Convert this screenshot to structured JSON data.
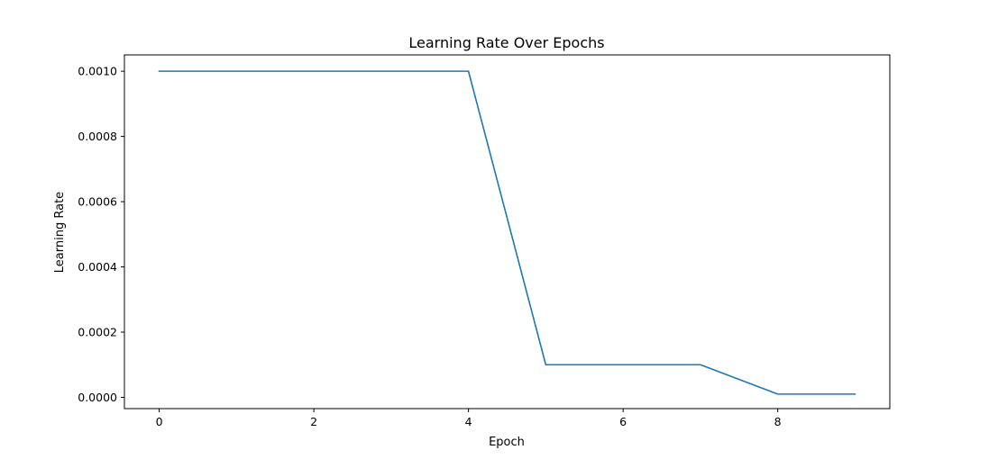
{
  "chart_data": {
    "type": "line",
    "title": "Learning Rate Over Epochs",
    "xlabel": "Epoch",
    "ylabel": "Learning Rate",
    "xlim": [
      -0.45,
      9.45
    ],
    "ylim": [
      -3.45e-05,
      0.00105
    ],
    "xticks": [
      0,
      2,
      4,
      6,
      8
    ],
    "xtick_labels": [
      "0",
      "2",
      "4",
      "6",
      "8"
    ],
    "yticks": [
      0,
      0.0002,
      0.0004,
      0.0006,
      0.0008,
      0.001
    ],
    "ytick_labels": [
      "0.0000",
      "0.0002",
      "0.0004",
      "0.0006",
      "0.0008",
      "0.0010"
    ],
    "grid": false,
    "x": [
      0,
      1,
      2,
      3,
      4,
      5,
      6,
      7,
      8,
      9
    ],
    "series": [
      {
        "color": "#1f77b4",
        "values": [
          0.001,
          0.001,
          0.001,
          0.001,
          0.001,
          0.0001,
          0.0001,
          0.0001,
          1e-05,
          1e-05
        ]
      }
    ]
  }
}
